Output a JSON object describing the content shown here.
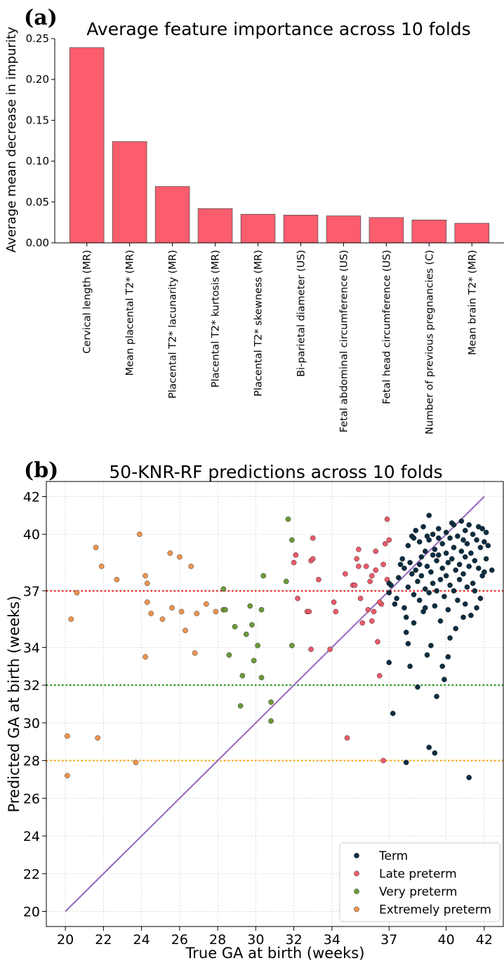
{
  "colors": {
    "bar": "#fb5d6d",
    "term": "#0b2d40",
    "late_preterm": "#ed5b6b",
    "very_preterm": "#6b9a3a",
    "extremely_preterm": "#ef9550",
    "diagonal": "#9467bd",
    "line_37": "#ee1c1c",
    "line_32": "#1f9b1f",
    "line_28": "#ffa81a"
  },
  "chart_data": [
    {
      "panel": "(a)",
      "type": "bar",
      "title": "Average feature importance across 10 folds",
      "xlabel": "",
      "ylabel": "Average mean decrease in impurity",
      "ylim": [
        0,
        0.25
      ],
      "yticks": [
        "0.00",
        "0.05",
        "0.10",
        "0.15",
        "0.20",
        "0.25"
      ],
      "categories": [
        "Cervical length (MR)",
        "Mean placental T2* (MR)",
        "Placental T2* lacunarity (MR)",
        "Placental T2* kurtosis (MR)",
        "Placental T2* skewness (MR)",
        "Bi-parietal diameter (US)",
        "Fetal abdominal circumference (US)",
        "Fetal head circumference (US)",
        "Number of previous pregnancies (C)",
        "Mean brain T2* (MR)"
      ],
      "values": [
        0.239,
        0.124,
        0.069,
        0.042,
        0.035,
        0.034,
        0.033,
        0.031,
        0.028,
        0.024
      ]
    },
    {
      "panel": "(b)",
      "type": "scatter",
      "title": "50-KNR-RF predictions across 10 folds",
      "xlabel": "True GA at birth (weeks)",
      "ylabel": "Predicted GA at birth (weeks)",
      "xlim": [
        19,
        43
      ],
      "ylim": [
        19.2,
        42.8
      ],
      "xticks": [
        "20",
        "22",
        "24",
        "26",
        "28",
        "30",
        "32",
        "34",
        "37",
        "40",
        "42"
      ],
      "yticks": [
        "20",
        "22",
        "24",
        "26",
        "28",
        "30",
        "32",
        "34",
        "37",
        "40",
        "42"
      ],
      "reference_lines": [
        {
          "axis": "y",
          "value": 37,
          "color": "line_37"
        },
        {
          "axis": "y",
          "value": 32,
          "color": "line_32"
        },
        {
          "axis": "y",
          "value": 28,
          "color": "line_28"
        }
      ],
      "diagonal": {
        "from": [
          20,
          20
        ],
        "to": [
          42,
          42
        ]
      },
      "legend": {
        "placement": "lower-right"
      },
      "series": [
        {
          "name": "Term",
          "color": "term",
          "points": [
            [
              37.0,
              37.4
            ],
            [
              37.0,
              36.9
            ],
            [
              37.0,
              33.2
            ],
            [
              37.1,
              37.3
            ],
            [
              37.2,
              30.5
            ],
            [
              37.3,
              36.3
            ],
            [
              37.4,
              36.6
            ],
            [
              37.5,
              37.7
            ],
            [
              37.6,
              38.4
            ],
            [
              37.7,
              38.7
            ],
            [
              37.8,
              38.2
            ],
            [
              37.8,
              36.1
            ],
            [
              37.9,
              35.6
            ],
            [
              37.9,
              34.8
            ],
            [
              38.0,
              39.4
            ],
            [
              38.0,
              37.2
            ],
            [
              38.0,
              34.2
            ],
            [
              38.1,
              38.5
            ],
            [
              38.1,
              33.0
            ],
            [
              38.2,
              39.9
            ],
            [
              38.2,
              37.9
            ],
            [
              38.3,
              36.8
            ],
            [
              38.3,
              35.3
            ],
            [
              38.4,
              40.2
            ],
            [
              38.4,
              38.1
            ],
            [
              38.5,
              37.5
            ],
            [
              38.5,
              31.9
            ],
            [
              38.6,
              39.6
            ],
            [
              38.6,
              36.5
            ],
            [
              38.7,
              38.8
            ],
            [
              38.7,
              37.8
            ],
            [
              38.8,
              40.4
            ],
            [
              38.8,
              35.9
            ],
            [
              38.9,
              39.1
            ],
            [
              38.9,
              37.1
            ],
            [
              39.0,
              38.3
            ],
            [
              39.0,
              33.6
            ],
            [
              39.1,
              41.0
            ],
            [
              39.1,
              39.7
            ],
            [
              39.1,
              36.9
            ],
            [
              39.1,
              28.7
            ],
            [
              39.2,
              38.0
            ],
            [
              39.2,
              34.1
            ],
            [
              39.3,
              40.0
            ],
            [
              39.3,
              37.4
            ],
            [
              39.4,
              39.2
            ],
            [
              39.4,
              36.2
            ],
            [
              39.4,
              28.4
            ],
            [
              39.5,
              38.6
            ],
            [
              39.5,
              37.0
            ],
            [
              39.5,
              31.4
            ],
            [
              39.6,
              40.3
            ],
            [
              39.6,
              38.9
            ],
            [
              39.7,
              37.6
            ],
            [
              39.7,
              35.4
            ],
            [
              39.8,
              39.5
            ],
            [
              39.8,
              38.2
            ],
            [
              39.8,
              33.0
            ],
            [
              39.9,
              36.7
            ],
            [
              39.9,
              32.3
            ],
            [
              40.0,
              40.1
            ],
            [
              40.0,
              39.0
            ],
            [
              40.0,
              37.8
            ],
            [
              40.1,
              38.5
            ],
            [
              40.1,
              36.0
            ],
            [
              40.1,
              33.5
            ],
            [
              40.2,
              39.8
            ],
            [
              40.2,
              37.3
            ],
            [
              40.2,
              34.5
            ],
            [
              40.3,
              40.6
            ],
            [
              40.3,
              38.7
            ],
            [
              40.4,
              39.3
            ],
            [
              40.4,
              37.0
            ],
            [
              40.5,
              38.1
            ],
            [
              40.5,
              35.0
            ],
            [
              40.6,
              39.9
            ],
            [
              40.6,
              36.5
            ],
            [
              40.7,
              38.4
            ],
            [
              40.7,
              37.6
            ],
            [
              40.8,
              40.7
            ],
            [
              40.8,
              39.1
            ],
            [
              40.9,
              37.9
            ],
            [
              40.9,
              35.6
            ],
            [
              41.0,
              40.2
            ],
            [
              41.0,
              38.8
            ],
            [
              41.0,
              36.3
            ],
            [
              41.1,
              39.5
            ],
            [
              41.1,
              37.2
            ],
            [
              41.2,
              40.5
            ],
            [
              41.2,
              38.3
            ],
            [
              41.2,
              27.1
            ],
            [
              41.3,
              39.0
            ],
            [
              41.3,
              35.7
            ],
            [
              41.4,
              40.0
            ],
            [
              41.5,
              38.6
            ],
            [
              41.5,
              37.0
            ],
            [
              41.6,
              39.7
            ],
            [
              41.6,
              36.1
            ],
            [
              41.7,
              40.4
            ],
            [
              41.7,
              38.2
            ],
            [
              41.8,
              39.3
            ],
            [
              41.8,
              36.6
            ],
            [
              41.9,
              40.3
            ],
            [
              41.9,
              37.8
            ],
            [
              42.0,
              39.6
            ],
            [
              42.0,
              38.0
            ],
            [
              42.1,
              40.1
            ],
            [
              42.1,
              38.7
            ],
            [
              42.2,
              39.4
            ],
            [
              42.4,
              38.1
            ],
            [
              37.9,
              27.9
            ],
            [
              38.3,
              39.8
            ],
            [
              38.6,
              38.4
            ],
            [
              38.9,
              36.1
            ],
            [
              39.6,
              39.8
            ],
            [
              40.4,
              40.5
            ],
            [
              40.9,
              39.7
            ],
            [
              41.4,
              37.4
            ],
            [
              39.0,
              39.9
            ],
            [
              39.3,
              38.9
            ]
          ]
        },
        {
          "name": "Late preterm",
          "color": "late_preterm",
          "points": [
            [
              32.0,
              38.5
            ],
            [
              32.1,
              38.9
            ],
            [
              32.2,
              36.6
            ],
            [
              32.7,
              35.9
            ],
            [
              32.8,
              35.9
            ],
            [
              32.9,
              38.6
            ],
            [
              33.0,
              38.7
            ],
            [
              33.0,
              39.8
            ],
            [
              32.9,
              33.9
            ],
            [
              33.3,
              37.6
            ],
            [
              33.9,
              33.9
            ],
            [
              34.1,
              36.4
            ],
            [
              34.2,
              35.9
            ],
            [
              34.7,
              37.9
            ],
            [
              34.8,
              29.2
            ],
            [
              35.1,
              37.3
            ],
            [
              35.2,
              37.3
            ],
            [
              35.3,
              38.7
            ],
            [
              35.4,
              38.3
            ],
            [
              35.4,
              39.2
            ],
            [
              35.5,
              36.6
            ],
            [
              35.6,
              35.3
            ],
            [
              35.8,
              38.3
            ],
            [
              35.9,
              36.0
            ],
            [
              36.0,
              37.5
            ],
            [
              36.1,
              35.4
            ],
            [
              36.1,
              37.8
            ],
            [
              36.2,
              35.9
            ],
            [
              36.3,
              39.1
            ],
            [
              36.3,
              38.1
            ],
            [
              36.4,
              34.3
            ],
            [
              36.5,
              32.5
            ],
            [
              36.6,
              36.3
            ],
            [
              36.7,
              28.0
            ],
            [
              36.7,
              38.4
            ],
            [
              36.8,
              39.5
            ],
            [
              36.9,
              40.8
            ],
            [
              36.9,
              37.6
            ],
            [
              37.0,
              39.7
            ],
            [
              36.5,
              36.4
            ]
          ]
        },
        {
          "name": "Very preterm",
          "color": "very_preterm",
          "points": [
            [
              28.3,
              37.1
            ],
            [
              28.3,
              36.0
            ],
            [
              28.4,
              36.0
            ],
            [
              28.6,
              33.6
            ],
            [
              28.9,
              35.1
            ],
            [
              29.2,
              30.9
            ],
            [
              29.3,
              32.5
            ],
            [
              29.5,
              34.7
            ],
            [
              29.7,
              36.2
            ],
            [
              29.8,
              35.2
            ],
            [
              29.9,
              33.3
            ],
            [
              30.1,
              34.1
            ],
            [
              30.3,
              32.4
            ],
            [
              30.3,
              36.0
            ],
            [
              30.4,
              37.8
            ],
            [
              30.8,
              31.1
            ],
            [
              30.8,
              30.1
            ],
            [
              31.6,
              37.5
            ],
            [
              31.7,
              40.8
            ],
            [
              31.9,
              39.7
            ],
            [
              31.9,
              34.1
            ]
          ]
        },
        {
          "name": "Extremely preterm",
          "color": "extremely_preterm",
          "points": [
            [
              20.1,
              29.3
            ],
            [
              20.1,
              27.2
            ],
            [
              20.3,
              35.5
            ],
            [
              20.6,
              36.9
            ],
            [
              21.6,
              39.3
            ],
            [
              21.7,
              29.2
            ],
            [
              21.9,
              38.3
            ],
            [
              22.7,
              37.6
            ],
            [
              23.7,
              27.9
            ],
            [
              23.9,
              40.0
            ],
            [
              24.2,
              37.8
            ],
            [
              24.2,
              33.5
            ],
            [
              24.3,
              36.4
            ],
            [
              24.3,
              37.4
            ],
            [
              24.5,
              35.8
            ],
            [
              25.1,
              35.5
            ],
            [
              25.5,
              39.0
            ],
            [
              25.6,
              36.1
            ],
            [
              26.0,
              38.8
            ],
            [
              26.1,
              35.9
            ],
            [
              26.3,
              34.9
            ],
            [
              26.6,
              38.3
            ],
            [
              26.8,
              33.7
            ],
            [
              26.9,
              35.8
            ],
            [
              27.4,
              36.3
            ],
            [
              27.9,
              35.9
            ]
          ]
        }
      ]
    }
  ]
}
